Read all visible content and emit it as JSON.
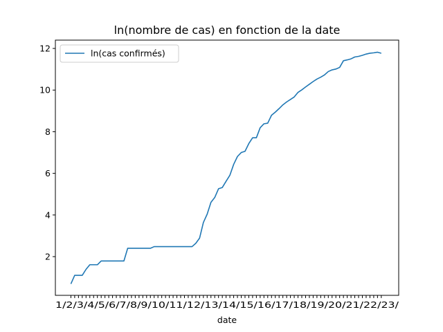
{
  "chart_data": {
    "type": "line",
    "title": "ln(nombre de cas) en fonction de la date",
    "xlabel": "date",
    "ylabel": "",
    "ylim": [
      0.14,
      12.4
    ],
    "y_ticks": [
      2,
      4,
      6,
      8,
      10,
      12
    ],
    "y_tick_labels": [
      "2",
      "4",
      "6",
      "8",
      "10",
      "12"
    ],
    "grid": false,
    "legend": "top-left",
    "x_tick_label_visible": "1/2/3/4/5/6/7/8/9/10/11/12/13/14/15/16/17/18/19/20/21/22/23/",
    "series": [
      {
        "name": "ln(cas confirmés)",
        "color": "#1f77b4",
        "values": [
          0.69,
          1.1,
          1.1,
          1.1,
          1.39,
          1.61,
          1.61,
          1.61,
          1.79,
          1.79,
          1.79,
          1.79,
          1.79,
          1.79,
          1.79,
          2.4,
          2.4,
          2.4,
          2.4,
          2.4,
          2.4,
          2.4,
          2.48,
          2.48,
          2.48,
          2.48,
          2.48,
          2.48,
          2.48,
          2.48,
          2.48,
          2.48,
          2.48,
          2.64,
          2.89,
          3.64,
          4.04,
          4.61,
          4.84,
          5.26,
          5.32,
          5.62,
          5.91,
          6.43,
          6.81,
          7.0,
          7.06,
          7.43,
          7.71,
          7.71,
          8.19,
          8.38,
          8.41,
          8.79,
          8.94,
          9.11,
          9.29,
          9.43,
          9.55,
          9.67,
          9.89,
          10.01,
          10.15,
          10.28,
          10.41,
          10.53,
          10.62,
          10.73,
          10.89,
          10.97,
          11.01,
          11.09,
          11.41,
          11.45,
          11.5,
          11.59,
          11.62,
          11.67,
          11.73,
          11.77,
          11.79,
          11.82,
          11.77
        ]
      }
    ]
  }
}
